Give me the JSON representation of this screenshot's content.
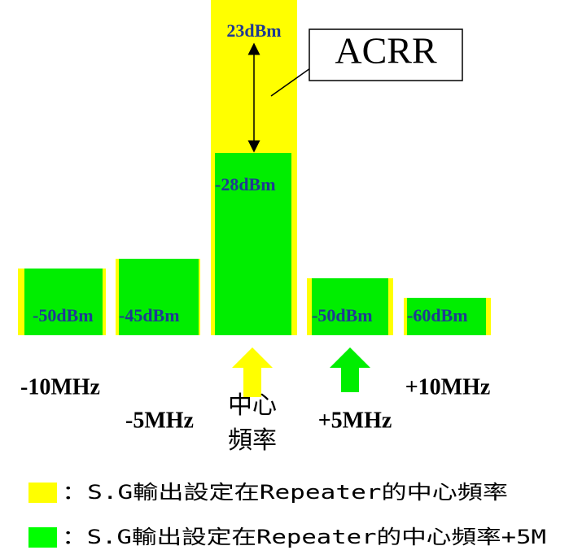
{
  "diagram": {
    "bars": [
      {
        "label": "-50dBm"
      },
      {
        "label": "-45dBm"
      },
      {
        "label": "-28dBm"
      },
      {
        "label": "-50dBm"
      },
      {
        "label": "-60dBm"
      }
    ],
    "top_label": "23dBm",
    "callout": "ACRR",
    "frequencies": [
      "-10MHz",
      "-5MHz",
      "中心",
      "頻率",
      "+5MHz",
      "+10MHz"
    ],
    "legend": [
      {
        "color": "#ffff00",
        "text": "：S.G輸出設定在Repeater的中心頻率"
      },
      {
        "color": "#00ff00",
        "text": "：S.G輸出設定在Repeater的中心頻率+5M"
      }
    ]
  }
}
